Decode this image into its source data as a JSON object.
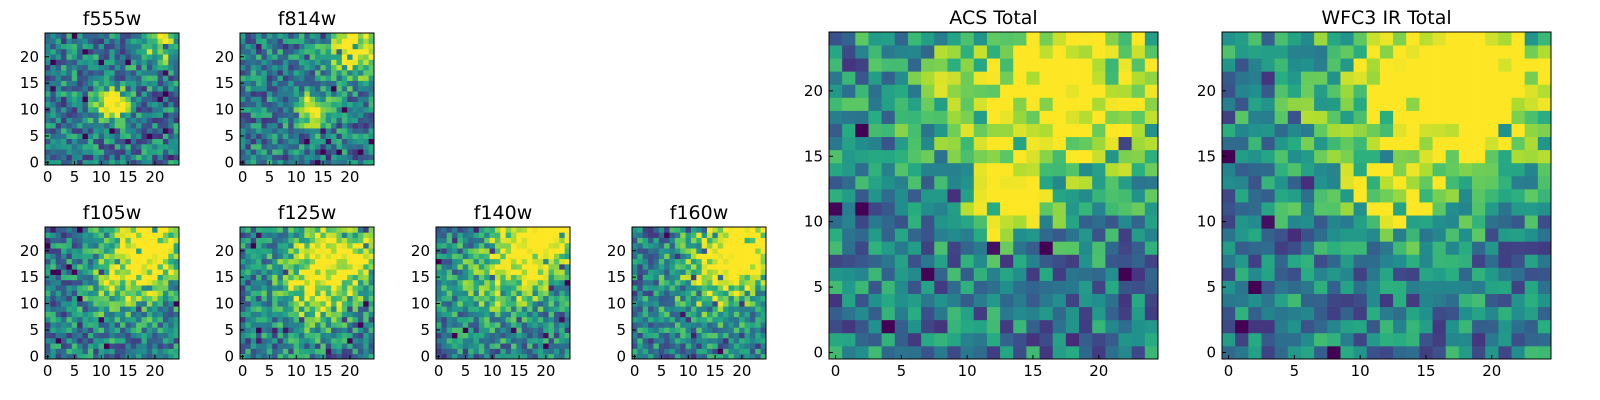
{
  "chart_data": [
    {
      "type": "heatmap",
      "title": "f555w",
      "xticks": [
        "0",
        "5",
        "10",
        "15",
        "20"
      ],
      "yticks": [
        "0",
        "5",
        "10",
        "15",
        "20"
      ],
      "xlim": [
        0,
        25
      ],
      "ylim": [
        0,
        25
      ],
      "grid": false
    },
    {
      "type": "heatmap",
      "title": "f814w",
      "xticks": [
        "0",
        "5",
        "10",
        "15",
        "20"
      ],
      "yticks": [
        "0",
        "5",
        "10",
        "15",
        "20"
      ],
      "xlim": [
        0,
        25
      ],
      "ylim": [
        0,
        25
      ],
      "grid": false
    },
    {
      "type": "heatmap",
      "title": "f105w",
      "xticks": [
        "0",
        "5",
        "10",
        "15",
        "20"
      ],
      "yticks": [
        "0",
        "5",
        "10",
        "15",
        "20"
      ],
      "xlim": [
        0,
        25
      ],
      "ylim": [
        0,
        25
      ],
      "grid": false
    },
    {
      "type": "heatmap",
      "title": "f125w",
      "xticks": [
        "0",
        "5",
        "10",
        "15",
        "20"
      ],
      "yticks": [
        "0",
        "5",
        "10",
        "15",
        "20"
      ],
      "xlim": [
        0,
        25
      ],
      "ylim": [
        0,
        25
      ],
      "grid": false
    },
    {
      "type": "heatmap",
      "title": "f140w",
      "xticks": [
        "0",
        "5",
        "10",
        "15",
        "20"
      ],
      "yticks": [
        "0",
        "5",
        "10",
        "15",
        "20"
      ],
      "xlim": [
        0,
        25
      ],
      "ylim": [
        0,
        25
      ],
      "grid": false
    },
    {
      "type": "heatmap",
      "title": "f160w",
      "xticks": [
        "0",
        "5",
        "10",
        "15",
        "20"
      ],
      "yticks": [
        "0",
        "5",
        "10",
        "15",
        "20"
      ],
      "xlim": [
        0,
        25
      ],
      "ylim": [
        0,
        25
      ],
      "grid": false
    },
    {
      "type": "heatmap",
      "title": "ACS Total",
      "xticks": [
        "0",
        "5",
        "10",
        "15",
        "20"
      ],
      "yticks": [
        "0",
        "5",
        "10",
        "15",
        "20"
      ],
      "xlim": [
        0,
        25
      ],
      "ylim": [
        0,
        25
      ],
      "grid": false
    },
    {
      "type": "heatmap",
      "title": "WFC3 IR Total",
      "xticks": [
        "0",
        "5",
        "10",
        "15",
        "20"
      ],
      "yticks": [
        "0",
        "5",
        "10",
        "15",
        "20"
      ],
      "xlim": [
        0,
        25
      ],
      "ylim": [
        0,
        25
      ],
      "grid": false
    }
  ],
  "colormap": "viridis",
  "colors": {
    "low": "#440154",
    "mid": "#21918c",
    "high": "#fde725"
  },
  "grid_size": 25
}
